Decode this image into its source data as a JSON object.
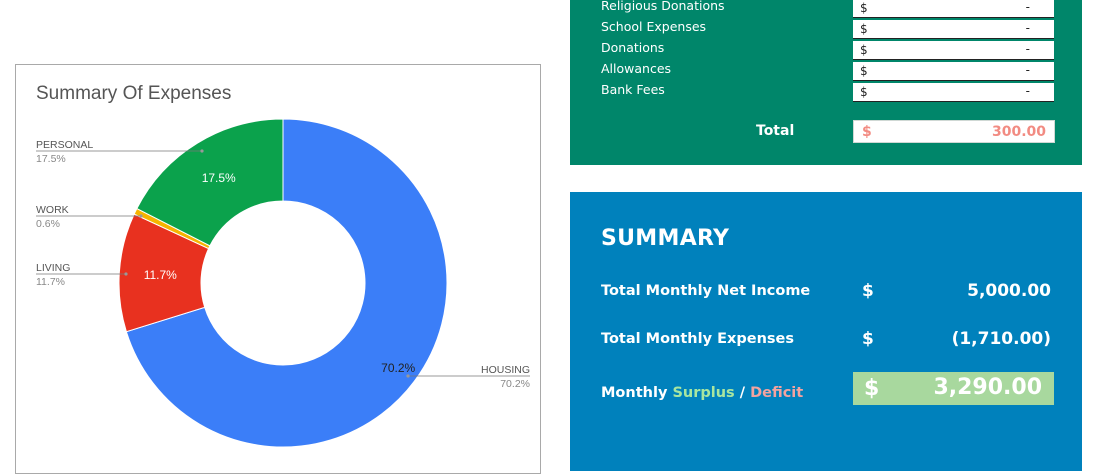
{
  "chart": {
    "title": "Summary Of Expenses",
    "chart_data": {
      "type": "pie",
      "title": "Summary Of Expenses",
      "donut": true,
      "categories": [
        "HOUSING",
        "LIVING",
        "WORK",
        "PERSONAL"
      ],
      "values": [
        70.2,
        11.7,
        0.6,
        17.5
      ],
      "value_labels": [
        "70.2%",
        "11.7%",
        "0.6%",
        "17.5%"
      ],
      "colors": [
        "#3b7ef8",
        "#e8311f",
        "#f6b400",
        "#0ba24c"
      ],
      "legend": "callout-labels"
    },
    "callouts": [
      {
        "name": "PERSONAL",
        "pct": "17.5%"
      },
      {
        "name": "WORK",
        "pct": "0.6%"
      },
      {
        "name": "LIVING",
        "pct": "11.7%"
      },
      {
        "name": "HOUSING",
        "pct": "70.2%"
      }
    ]
  },
  "expenses": {
    "rows": [
      {
        "label": "Religious Donations",
        "currency": "$",
        "value": "-"
      },
      {
        "label": "School Expenses",
        "currency": "$",
        "value": "-"
      },
      {
        "label": "Donations",
        "currency": "$",
        "value": "-"
      },
      {
        "label": "Allowances",
        "currency": "$",
        "value": "-"
      },
      {
        "label": "Bank Fees",
        "currency": "$",
        "value": "-"
      }
    ],
    "total_label": "Total",
    "total_currency": "$",
    "total_value": "300.00"
  },
  "summary": {
    "heading": "SUMMARY",
    "income_label": "Total Monthly Net Income",
    "income_currency": "$",
    "income_value": "5,000.00",
    "expenses_label": "Total Monthly Expenses",
    "expenses_currency": "$",
    "expenses_value": "(1,710.00)",
    "surplus_prefix": "Monthly ",
    "surplus_word": "Surplus",
    "surplus_sep": " / ",
    "deficit_word": "Deficit",
    "surplus_currency": "$",
    "surplus_value": "3,290.00"
  },
  "colors": {
    "expense_panel": "#00866a",
    "summary_panel": "#0081bc",
    "total_accent": "#f28b82",
    "surplus_cell": "#a8d89e"
  }
}
